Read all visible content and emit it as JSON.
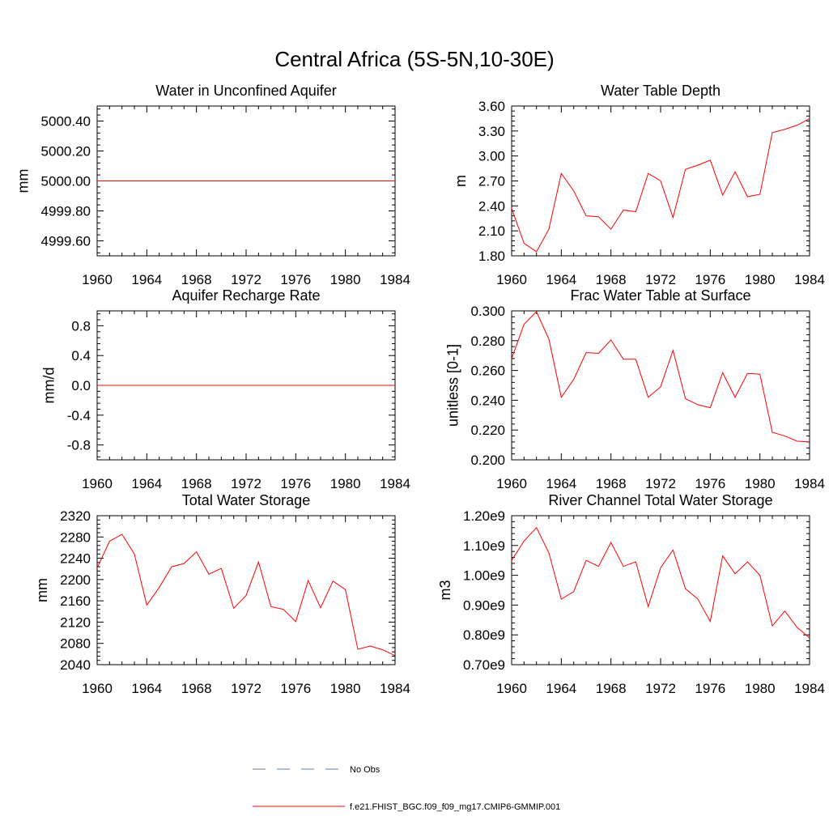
{
  "figure": {
    "title": "Central Africa (5S-5N,10-30E)"
  },
  "chart_data": [
    {
      "type": "line",
      "title": "Water in Unconfined Aquifer",
      "xlabel": "",
      "ylabel": "mm",
      "xlim": [
        1960,
        1984
      ],
      "ylim": [
        4999.5,
        5000.5
      ],
      "xticks": [
        1960,
        1964,
        1968,
        1972,
        1976,
        1980,
        1984
      ],
      "xtick_labels": [
        "1960",
        "1964",
        "1968",
        "1972",
        "1976",
        "1980",
        "1984"
      ],
      "yticks": [
        4999.6,
        4999.8,
        5000.0,
        5000.2,
        5000.4
      ],
      "ytick_labels": [
        "4999.60",
        "4999.80",
        "5000.00",
        "5000.20",
        "5000.40"
      ],
      "x": [
        1960,
        1961,
        1962,
        1963,
        1964,
        1965,
        1966,
        1967,
        1968,
        1969,
        1970,
        1971,
        1972,
        1973,
        1974,
        1975,
        1976,
        1977,
        1978,
        1979,
        1980,
        1981,
        1982,
        1983,
        1984
      ],
      "series": [
        {
          "name": "f.e21.FHIST_BGC.f09_f09_mg17.CMIP6-GMMIP.001",
          "color": "#ff0000",
          "values": [
            5000,
            5000,
            5000,
            5000,
            5000,
            5000,
            5000,
            5000,
            5000,
            5000,
            5000,
            5000,
            5000,
            5000,
            5000,
            5000,
            5000,
            5000,
            5000,
            5000,
            5000,
            5000,
            5000,
            5000,
            5000
          ]
        }
      ]
    },
    {
      "type": "line",
      "title": "Water Table Depth",
      "xlabel": "",
      "ylabel": "m",
      "xlim": [
        1960,
        1984
      ],
      "ylim": [
        1.8,
        3.6
      ],
      "xticks": [
        1960,
        1964,
        1968,
        1972,
        1976,
        1980,
        1984
      ],
      "xtick_labels": [
        "1960",
        "1964",
        "1968",
        "1972",
        "1976",
        "1980",
        "1984"
      ],
      "yticks": [
        1.8,
        2.1,
        2.4,
        2.7,
        3.0,
        3.3,
        3.6
      ],
      "ytick_labels": [
        "1.80",
        "2.10",
        "2.40",
        "2.70",
        "3.00",
        "3.30",
        "3.60"
      ],
      "x": [
        1960,
        1961,
        1962,
        1963,
        1964,
        1965,
        1966,
        1967,
        1968,
        1969,
        1970,
        1971,
        1972,
        1973,
        1974,
        1975,
        1976,
        1977,
        1978,
        1979,
        1980,
        1981,
        1982,
        1983,
        1984
      ],
      "series": [
        {
          "name": "f.e21.FHIST_BGC.f09_f09_mg17.CMIP6-GMMIP.001",
          "color": "#ff0000",
          "values": [
            2.37,
            1.95,
            1.85,
            2.12,
            2.79,
            2.58,
            2.28,
            2.27,
            2.12,
            2.35,
            2.33,
            2.79,
            2.7,
            2.26,
            2.84,
            2.89,
            2.95,
            2.53,
            2.81,
            2.51,
            2.54,
            3.28,
            3.32,
            3.37,
            3.45
          ]
        }
      ]
    },
    {
      "type": "line",
      "title": "Aquifer Recharge Rate",
      "xlabel": "",
      "ylabel": "mm/d",
      "xlim": [
        1960,
        1984
      ],
      "ylim": [
        -1.0,
        1.0
      ],
      "xticks": [
        1960,
        1964,
        1968,
        1972,
        1976,
        1980,
        1984
      ],
      "xtick_labels": [
        "1960",
        "1964",
        "1968",
        "1972",
        "1976",
        "1980",
        "1984"
      ],
      "yticks": [
        -0.8,
        -0.4,
        0.0,
        0.4,
        0.8
      ],
      "ytick_labels": [
        "-0.8",
        "-0.4",
        "0.0",
        "0.4",
        "0.8"
      ],
      "x": [
        1960,
        1961,
        1962,
        1963,
        1964,
        1965,
        1966,
        1967,
        1968,
        1969,
        1970,
        1971,
        1972,
        1973,
        1974,
        1975,
        1976,
        1977,
        1978,
        1979,
        1980,
        1981,
        1982,
        1983,
        1984
      ],
      "series": [
        {
          "name": "f.e21.FHIST_BGC.f09_f09_mg17.CMIP6-GMMIP.001",
          "color": "#ff0000",
          "values": [
            0,
            0,
            0,
            0,
            0,
            0,
            0,
            0,
            0,
            0,
            0,
            0,
            0,
            0,
            0,
            0,
            0,
            0,
            0,
            0,
            0,
            0,
            0,
            0,
            0
          ]
        }
      ]
    },
    {
      "type": "line",
      "title": "Frac Water Table at Surface",
      "xlabel": "",
      "ylabel": "unitless [0-1]",
      "xlim": [
        1960,
        1984
      ],
      "ylim": [
        0.2,
        0.3
      ],
      "xticks": [
        1960,
        1964,
        1968,
        1972,
        1976,
        1980,
        1984
      ],
      "xtick_labels": [
        "1960",
        "1964",
        "1968",
        "1972",
        "1976",
        "1980",
        "1984"
      ],
      "yticks": [
        0.2,
        0.22,
        0.24,
        0.26,
        0.28,
        0.3
      ],
      "ytick_labels": [
        "0.200",
        "0.220",
        "0.240",
        "0.260",
        "0.280",
        "0.300"
      ],
      "x": [
        1960,
        1961,
        1962,
        1963,
        1964,
        1965,
        1966,
        1967,
        1968,
        1969,
        1970,
        1971,
        1972,
        1973,
        1974,
        1975,
        1976,
        1977,
        1978,
        1979,
        1980,
        1981,
        1982,
        1983,
        1984
      ],
      "series": [
        {
          "name": "f.e21.FHIST_BGC.f09_f09_mg17.CMIP6-GMMIP.001",
          "color": "#ff0000",
          "values": [
            0.268,
            0.291,
            0.2995,
            0.281,
            0.242,
            0.254,
            0.272,
            0.2715,
            0.2805,
            0.2675,
            0.2675,
            0.242,
            0.249,
            0.2735,
            0.241,
            0.237,
            0.235,
            0.2585,
            0.242,
            0.258,
            0.2575,
            0.2185,
            0.216,
            0.2125,
            0.212
          ]
        }
      ]
    },
    {
      "type": "line",
      "title": "Total Water Storage",
      "xlabel": "",
      "ylabel": "mm",
      "xlim": [
        1960,
        1984
      ],
      "ylim": [
        2040,
        2320
      ],
      "xticks": [
        1960,
        1964,
        1968,
        1972,
        1976,
        1980,
        1984
      ],
      "xtick_labels": [
        "1960",
        "1964",
        "1968",
        "1972",
        "1976",
        "1980",
        "1984"
      ],
      "yticks": [
        2040,
        2080,
        2120,
        2160,
        2200,
        2240,
        2280,
        2320
      ],
      "ytick_labels": [
        "2040",
        "2080",
        "2120",
        "2160",
        "2200",
        "2240",
        "2280",
        "2320"
      ],
      "x": [
        1960,
        1961,
        1962,
        1963,
        1964,
        1965,
        1966,
        1967,
        1968,
        1969,
        1970,
        1971,
        1972,
        1973,
        1974,
        1975,
        1976,
        1977,
        1978,
        1979,
        1980,
        1981,
        1982,
        1983,
        1984
      ],
      "series": [
        {
          "name": "f.e21.FHIST_BGC.f09_f09_mg17.CMIP6-GMMIP.001",
          "color": "#ff0000",
          "values": [
            2222,
            2272,
            2285,
            2248,
            2152,
            2185,
            2224,
            2230,
            2252,
            2210,
            2221,
            2146,
            2170,
            2233,
            2149,
            2144,
            2121,
            2198,
            2147,
            2197,
            2181,
            2069,
            2075,
            2068,
            2057
          ]
        }
      ]
    },
    {
      "type": "line",
      "title": "River Channel Total Water Storage",
      "xlabel": "",
      "ylabel": "m3",
      "xlim": [
        1960,
        1984
      ],
      "ylim": [
        700000000.0,
        1200000000.0
      ],
      "xticks": [
        1960,
        1964,
        1968,
        1972,
        1976,
        1980,
        1984
      ],
      "xtick_labels": [
        "1960",
        "1964",
        "1968",
        "1972",
        "1976",
        "1980",
        "1984"
      ],
      "yticks": [
        700000000.0,
        800000000.0,
        900000000.0,
        1000000000.0,
        1100000000.0,
        1200000000.0
      ],
      "ytick_labels": [
        "0.70e9",
        "0.80e9",
        "0.90e9",
        "1.00e9",
        "1.10e9",
        "1.20e9"
      ],
      "x": [
        1960,
        1961,
        1962,
        1963,
        1964,
        1965,
        1966,
        1967,
        1968,
        1969,
        1970,
        1971,
        1972,
        1973,
        1974,
        1975,
        1976,
        1977,
        1978,
        1979,
        1980,
        1981,
        1982,
        1983,
        1984
      ],
      "series": [
        {
          "name": "f.e21.FHIST_BGC.f09_f09_mg17.CMIP6-GMMIP.001",
          "color": "#ff0000",
          "values": [
            1050000000.0,
            1115000000.0,
            1160000000.0,
            1075000000.0,
            920000000.0,
            945000000.0,
            1050000000.0,
            1030000000.0,
            1110000000.0,
            1030000000.0,
            1045000000.0,
            895000000.0,
            1025000000.0,
            1085000000.0,
            955000000.0,
            920000000.0,
            845000000.0,
            1065000000.0,
            1005000000.0,
            1045000000.0,
            1000000000.0,
            830000000.0,
            880000000.0,
            825000000.0,
            790000000.0
          ]
        }
      ]
    }
  ],
  "legend": {
    "entries": [
      {
        "label": "No Obs",
        "color": "#6674c0",
        "style": "dashed"
      },
      {
        "label": "f.e21.FHIST_BGC.f09_f09_mg17.CMIP6-GMMIP.001",
        "color": "#ff0000",
        "style": "solid"
      }
    ]
  }
}
